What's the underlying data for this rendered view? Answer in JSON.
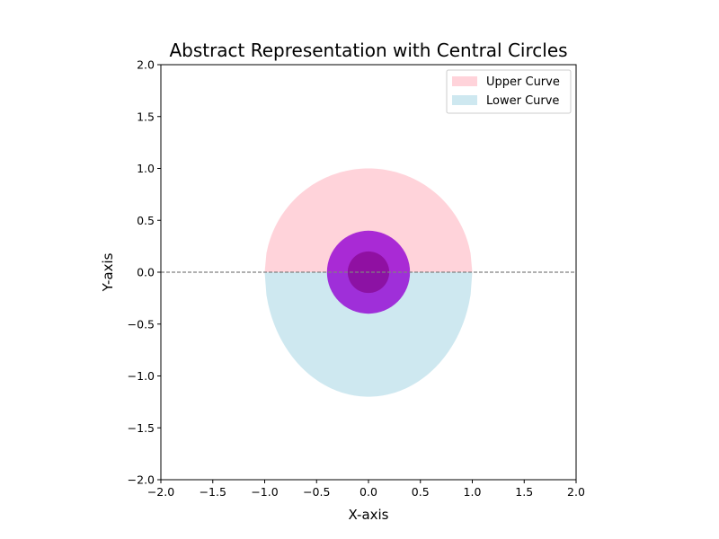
{
  "chart_data": {
    "type": "area",
    "title": "Abstract Representation with Central Circles",
    "xlabel": "X-axis",
    "ylabel": "Y-axis",
    "xlim": [
      -2,
      2
    ],
    "ylim": [
      -2,
      2
    ],
    "xticks": [
      -2.0,
      -1.5,
      -1.0,
      -0.5,
      0.0,
      0.5,
      1.0,
      1.5,
      2.0
    ],
    "yticks": [
      -2.0,
      -1.5,
      -1.0,
      -0.5,
      0.0,
      0.5,
      1.0,
      1.5,
      2.0
    ],
    "xtick_labels": [
      "−2.0",
      "−1.5",
      "−1.0",
      "−0.5",
      "0.0",
      "0.5",
      "1.0",
      "1.5",
      "2.0"
    ],
    "ytick_labels": [
      "−2.0",
      "−1.5",
      "−1.0",
      "−0.5",
      "0.0",
      "0.5",
      "1.0",
      "1.5",
      "2.0"
    ],
    "grid": false,
    "legend_position": "top-right",
    "series": [
      {
        "name": "Upper Curve",
        "kind": "fill_between",
        "shape": "semi-ellipse above y=0",
        "x_range": [
          -1,
          1
        ],
        "y_peak": 1.0,
        "color": "#ffc0cb",
        "alpha": 0.7
      },
      {
        "name": "Lower Curve",
        "kind": "fill_between",
        "shape": "semi-ellipse below y=0",
        "x_range": [
          -1,
          1
        ],
        "y_trough": -1.2,
        "color": "#add8e6",
        "alpha": 0.6
      }
    ],
    "circles": [
      {
        "center": [
          0,
          0
        ],
        "radius": 0.4,
        "color": "#9400d3",
        "alpha": 0.8
      },
      {
        "center": [
          0,
          0
        ],
        "radius": 0.2,
        "color": "#800080",
        "alpha": 0.6
      }
    ],
    "reference_line": {
      "y": 0,
      "style": "dashed",
      "color": "#808080"
    }
  }
}
